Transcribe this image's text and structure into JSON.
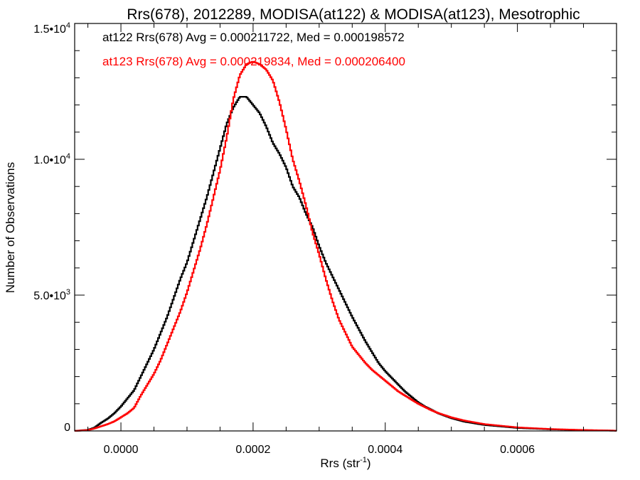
{
  "chart_data": {
    "type": "line",
    "title": "Rrs(678), 2012289, MODISA(at122) & MODISA(at123), Mesotrophic",
    "xlabel_main": "Rrs (str",
    "xlabel_sup": "-1",
    "xlabel_close": ")",
    "ylabel": "Number of Observations",
    "xlim": [
      -7e-05,
      0.00075
    ],
    "ylim": [
      0,
      15000
    ],
    "x_ticks": [
      {
        "value": 0.0,
        "label": "0.0000"
      },
      {
        "value": 0.0002,
        "label": "0.0002"
      },
      {
        "value": 0.0004,
        "label": "0.0004"
      },
      {
        "value": 0.0006,
        "label": "0.0006"
      }
    ],
    "y_ticks": [
      {
        "value": 0,
        "base": "0",
        "exp": ""
      },
      {
        "value": 5000,
        "base": "5.0•10",
        "exp": "3"
      },
      {
        "value": 10000,
        "base": "1.0•10",
        "exp": "4"
      },
      {
        "value": 15000,
        "base": "1.5•10",
        "exp": "4"
      }
    ],
    "annotations": [
      "at122 Rrs(678) Avg = 0.000211722, Med = 0.000198572",
      "at123 Rrs(678) Avg = 0.000219834, Med = 0.000206400"
    ],
    "series": [
      {
        "color": "#000000",
        "points": [
          [
            -7e-05,
            0
          ],
          [
            -5e-05,
            40
          ],
          [
            -4e-05,
            120
          ],
          [
            -3e-05,
            300
          ],
          [
            -2e-05,
            450
          ],
          [
            -1e-05,
            650
          ],
          [
            0.0,
            900
          ],
          [
            1e-05,
            1200
          ],
          [
            2e-05,
            1500
          ],
          [
            3e-05,
            2000
          ],
          [
            4e-05,
            2500
          ],
          [
            5e-05,
            3000
          ],
          [
            6e-05,
            3600
          ],
          [
            7e-05,
            4200
          ],
          [
            8e-05,
            4900
          ],
          [
            9e-05,
            5600
          ],
          [
            0.0001,
            6200
          ],
          [
            0.00011,
            7000
          ],
          [
            0.00012,
            7800
          ],
          [
            0.00013,
            8600
          ],
          [
            0.00014,
            9500
          ],
          [
            0.00015,
            10400
          ],
          [
            0.00016,
            11300
          ],
          [
            0.00017,
            11900
          ],
          [
            0.00018,
            12300
          ],
          [
            0.00019,
            12300
          ],
          [
            0.0002,
            12000
          ],
          [
            0.00021,
            11700
          ],
          [
            0.00022,
            11200
          ],
          [
            0.00023,
            10600
          ],
          [
            0.00024,
            10200
          ],
          [
            0.00025,
            9700
          ],
          [
            0.00026,
            9000
          ],
          [
            0.00027,
            8600
          ],
          [
            0.00028,
            8000
          ],
          [
            0.00029,
            7500
          ],
          [
            0.0003,
            6800
          ],
          [
            0.00031,
            6200
          ],
          [
            0.00032,
            5700
          ],
          [
            0.00033,
            5200
          ],
          [
            0.00034,
            4700
          ],
          [
            0.00035,
            4200
          ],
          [
            0.00036,
            3750
          ],
          [
            0.00037,
            3300
          ],
          [
            0.00038,
            2900
          ],
          [
            0.00039,
            2500
          ],
          [
            0.0004,
            2200
          ],
          [
            0.00041,
            1950
          ],
          [
            0.00042,
            1700
          ],
          [
            0.00043,
            1450
          ],
          [
            0.00044,
            1250
          ],
          [
            0.00045,
            1050
          ],
          [
            0.00046,
            900
          ],
          [
            0.00047,
            780
          ],
          [
            0.00048,
            650
          ],
          [
            0.0005,
            470
          ],
          [
            0.00052,
            340
          ],
          [
            0.00055,
            220
          ],
          [
            0.0006,
            110
          ],
          [
            0.00065,
            60
          ],
          [
            0.0007,
            30
          ],
          [
            0.00075,
            10
          ]
        ]
      },
      {
        "color": "#ff0000",
        "points": [
          [
            -7e-05,
            0
          ],
          [
            -5e-05,
            30
          ],
          [
            -4e-05,
            90
          ],
          [
            -3e-05,
            170
          ],
          [
            -2e-05,
            250
          ],
          [
            -1e-05,
            350
          ],
          [
            0.0,
            500
          ],
          [
            1e-05,
            650
          ],
          [
            2e-05,
            850
          ],
          [
            3e-05,
            1300
          ],
          [
            4e-05,
            1700
          ],
          [
            5e-05,
            2100
          ],
          [
            6e-05,
            2600
          ],
          [
            7e-05,
            3200
          ],
          [
            8e-05,
            3800
          ],
          [
            9e-05,
            4400
          ],
          [
            0.0001,
            5100
          ],
          [
            0.00011,
            5900
          ],
          [
            0.00012,
            6700
          ],
          [
            0.00013,
            7600
          ],
          [
            0.00014,
            8600
          ],
          [
            0.00015,
            9600
          ],
          [
            0.00016,
            10800
          ],
          [
            0.00017,
            12200
          ],
          [
            0.00018,
            13100
          ],
          [
            0.00019,
            13500
          ],
          [
            0.0002,
            13600
          ],
          [
            0.00021,
            13500
          ],
          [
            0.00022,
            13300
          ],
          [
            0.00023,
            12900
          ],
          [
            0.00024,
            12100
          ],
          [
            0.00025,
            11100
          ],
          [
            0.00026,
            10000
          ],
          [
            0.00027,
            9200
          ],
          [
            0.00028,
            8300
          ],
          [
            0.00029,
            7300
          ],
          [
            0.0003,
            6500
          ],
          [
            0.00031,
            5600
          ],
          [
            0.00032,
            4800
          ],
          [
            0.00033,
            4100
          ],
          [
            0.00034,
            3600
          ],
          [
            0.00035,
            3100
          ],
          [
            0.00036,
            2800
          ],
          [
            0.00037,
            2500
          ],
          [
            0.00038,
            2250
          ],
          [
            0.00039,
            2050
          ],
          [
            0.0004,
            1850
          ],
          [
            0.00041,
            1650
          ],
          [
            0.00042,
            1450
          ],
          [
            0.00043,
            1300
          ],
          [
            0.00044,
            1150
          ],
          [
            0.00045,
            1000
          ],
          [
            0.00046,
            880
          ],
          [
            0.00047,
            760
          ],
          [
            0.00048,
            660
          ],
          [
            0.0005,
            500
          ],
          [
            0.00052,
            380
          ],
          [
            0.00055,
            250
          ],
          [
            0.0006,
            130
          ],
          [
            0.00065,
            70
          ],
          [
            0.0007,
            35
          ],
          [
            0.00075,
            10
          ]
        ]
      }
    ]
  }
}
